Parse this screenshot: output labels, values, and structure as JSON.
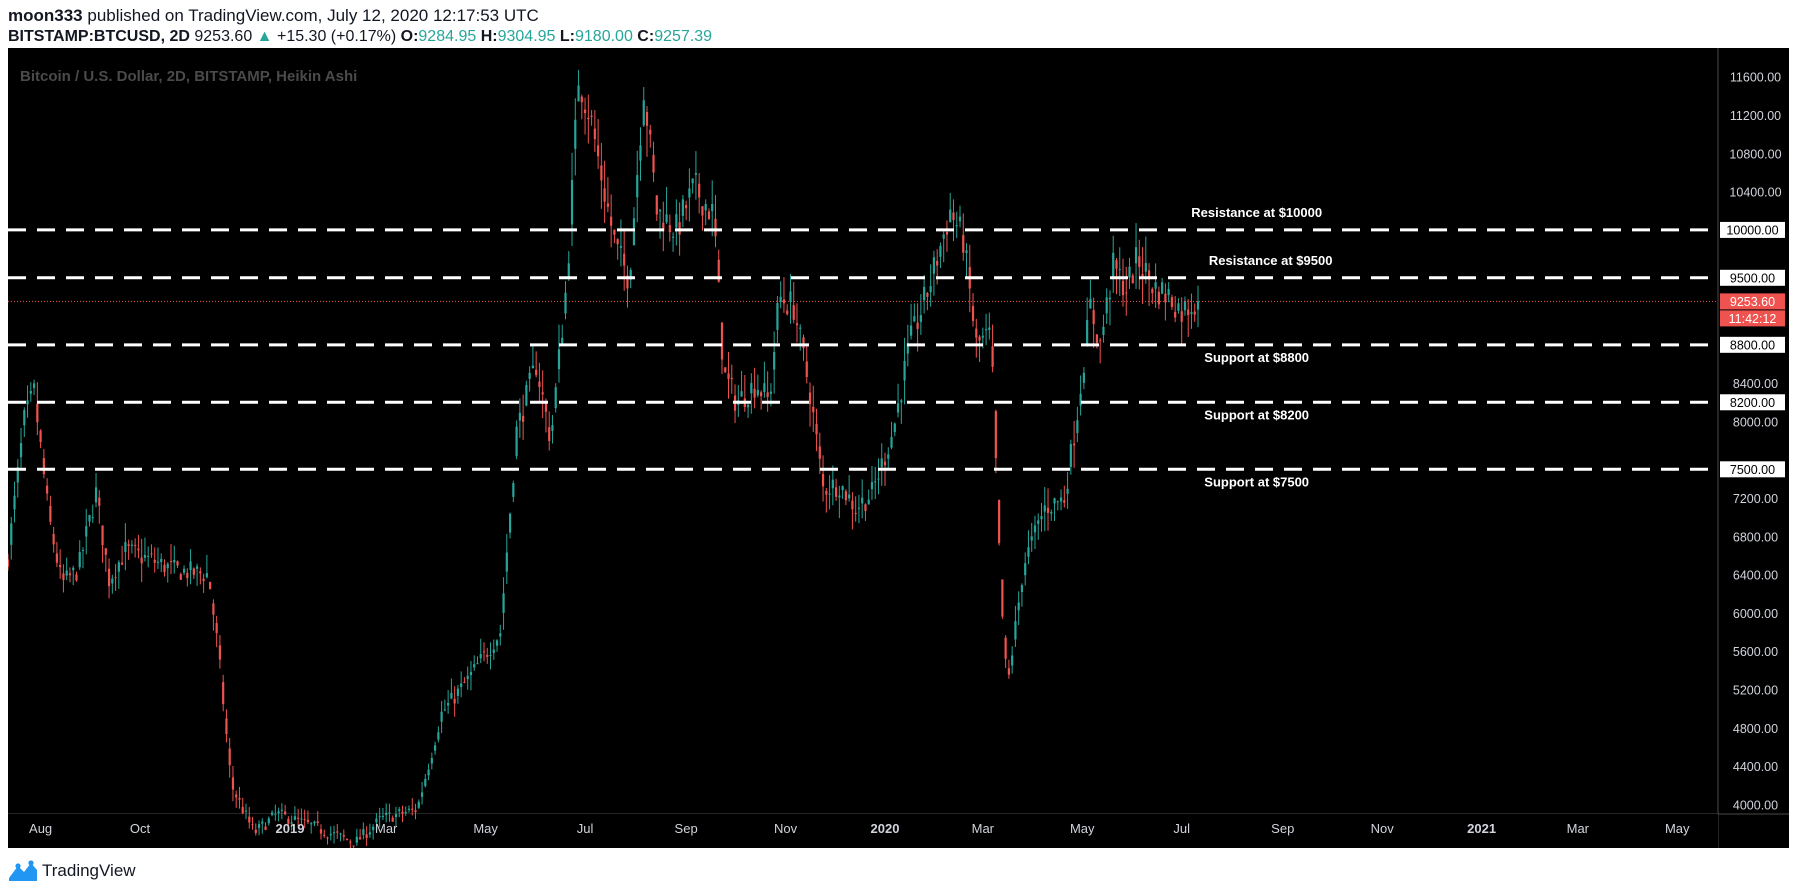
{
  "header": {
    "author": "moon333",
    "published_text": "published on TradingView.com, July 12, 2020 12:17:53 UTC",
    "symbol": "BITSTAMP:BTCUSD, 2D",
    "last": "9253.60",
    "change": "+15.30 (+0.17%)",
    "open_label": "O:",
    "open": "9284.95",
    "high_label": "H:",
    "high": "9304.95",
    "low_label": "L:",
    "low": "9180.00",
    "close_label": "C:",
    "close": "9257.39"
  },
  "footer": {
    "brand": "TradingView",
    "logo_icon": "tradingview-logo-icon"
  },
  "colors": {
    "background": "#000000",
    "up": "#26a69a",
    "down": "#ef5350",
    "price_line": "#ef5350",
    "level_line": "#ffffff"
  },
  "chart_data": {
    "type": "candlestick",
    "title": "Bitcoin / U.S. Dollar, 2D, BITSTAMP, Heikin Ashi",
    "price_scale": "linear",
    "ylim": [
      3900,
      11900
    ],
    "y_ticks": [
      4000,
      4400,
      4800,
      5200,
      5600,
      6000,
      6400,
      6800,
      7200,
      8000,
      8400,
      10400,
      10800,
      11200,
      11600
    ],
    "x_range": [
      "2018-07-12",
      "2021-05-26"
    ],
    "x_ticks": [
      {
        "label": "Aug",
        "date": "2018-08-01"
      },
      {
        "label": "Oct",
        "date": "2018-10-01"
      },
      {
        "label": "2019",
        "date": "2019-01-01"
      },
      {
        "label": "Mar",
        "date": "2019-03-01"
      },
      {
        "label": "May",
        "date": "2019-05-01"
      },
      {
        "label": "Jul",
        "date": "2019-07-01"
      },
      {
        "label": "Sep",
        "date": "2019-09-01"
      },
      {
        "label": "Nov",
        "date": "2019-11-01"
      },
      {
        "label": "2020",
        "date": "2020-01-01"
      },
      {
        "label": "Mar",
        "date": "2020-03-01"
      },
      {
        "label": "May",
        "date": "2020-05-01"
      },
      {
        "label": "Jul",
        "date": "2020-07-01"
      },
      {
        "label": "Sep",
        "date": "2020-09-01"
      },
      {
        "label": "Nov",
        "date": "2020-11-01"
      },
      {
        "label": "2021",
        "date": "2021-01-01"
      },
      {
        "label": "Mar",
        "date": "2021-03-01"
      },
      {
        "label": "May",
        "date": "2021-05-01"
      }
    ],
    "price_path": [
      [
        "2018-07-12",
        6600
      ],
      [
        "2018-07-22",
        8000
      ],
      [
        "2018-07-28",
        8300
      ],
      [
        "2018-08-06",
        7000
      ],
      [
        "2018-08-14",
        6300
      ],
      [
        "2018-08-24",
        6450
      ],
      [
        "2018-09-04",
        7250
      ],
      [
        "2018-09-12",
        6350
      ],
      [
        "2018-09-22",
        6650
      ],
      [
        "2018-10-08",
        6550
      ],
      [
        "2018-10-22",
        6450
      ],
      [
        "2018-11-12",
        6400
      ],
      [
        "2018-11-18",
        5600
      ],
      [
        "2018-11-26",
        4200
      ],
      [
        "2018-12-10",
        3700
      ],
      [
        "2018-12-24",
        3900
      ],
      [
        "2019-01-10",
        3800
      ],
      [
        "2019-02-10",
        3600
      ],
      [
        "2019-02-26",
        3850
      ],
      [
        "2019-03-20",
        3950
      ],
      [
        "2019-04-04",
        4950
      ],
      [
        "2019-04-20",
        5300
      ],
      [
        "2019-05-10",
        5800
      ],
      [
        "2019-05-20",
        7900
      ],
      [
        "2019-06-01",
        8600
      ],
      [
        "2019-06-10",
        7800
      ],
      [
        "2019-06-20",
        9500
      ],
      [
        "2019-06-27",
        11600
      ],
      [
        "2019-07-04",
        11200
      ],
      [
        "2019-07-14",
        10300
      ],
      [
        "2019-07-20",
        9800
      ],
      [
        "2019-07-28",
        9500
      ],
      [
        "2019-08-06",
        11500
      ],
      [
        "2019-08-14",
        10200
      ],
      [
        "2019-08-26",
        10000
      ],
      [
        "2019-09-06",
        10450
      ],
      [
        "2019-09-18",
        10150
      ],
      [
        "2019-09-24",
        8500
      ],
      [
        "2019-10-02",
        8200
      ],
      [
        "2019-10-14",
        8400
      ],
      [
        "2019-10-22",
        8200
      ],
      [
        "2019-10-28",
        9300
      ],
      [
        "2019-11-06",
        9200
      ],
      [
        "2019-11-16",
        8300
      ],
      [
        "2019-11-24",
        7300
      ],
      [
        "2019-12-04",
        7350
      ],
      [
        "2019-12-14",
        7100
      ],
      [
        "2019-12-24",
        7250
      ],
      [
        "2020-01-06",
        7900
      ],
      [
        "2020-01-16",
        8800
      ],
      [
        "2020-01-28",
        9400
      ],
      [
        "2020-02-10",
        10200
      ],
      [
        "2020-02-18",
        9900
      ],
      [
        "2020-02-26",
        8800
      ],
      [
        "2020-03-06",
        8900
      ],
      [
        "2020-03-12",
        6200
      ],
      [
        "2020-03-16",
        5200
      ],
      [
        "2020-03-26",
        6500
      ],
      [
        "2020-04-08",
        7100
      ],
      [
        "2020-04-20",
        7200
      ],
      [
        "2020-04-28",
        8100
      ],
      [
        "2020-05-06",
        9200
      ],
      [
        "2020-05-12",
        8800
      ],
      [
        "2020-05-20",
        9600
      ],
      [
        "2020-05-28",
        9400
      ],
      [
        "2020-06-04",
        9700
      ],
      [
        "2020-06-14",
        9400
      ],
      [
        "2020-06-24",
        9300
      ],
      [
        "2020-07-01",
        9150
      ],
      [
        "2020-07-08",
        9250
      ],
      [
        "2020-07-12",
        9253.6
      ]
    ],
    "levels": [
      {
        "price": 10000,
        "label": "Resistance at $10000",
        "axis_label": "10000.00",
        "label_position": "above"
      },
      {
        "price": 9500,
        "label": "Resistance at $9500",
        "axis_label": "9500.00",
        "label_position": "above"
      },
      {
        "price": 8800,
        "label": "Support at $8800",
        "axis_label": "8800.00",
        "label_position": "below"
      },
      {
        "price": 8200,
        "label": "Support at $8200",
        "axis_label": "8200.00",
        "label_position": "below"
      },
      {
        "price": 7500,
        "label": "Support at $7500",
        "axis_label": "7500.00",
        "label_position": "below"
      }
    ],
    "current_price": {
      "value": 9253.6,
      "label": "9253.60",
      "countdown": "11:42:12"
    }
  }
}
